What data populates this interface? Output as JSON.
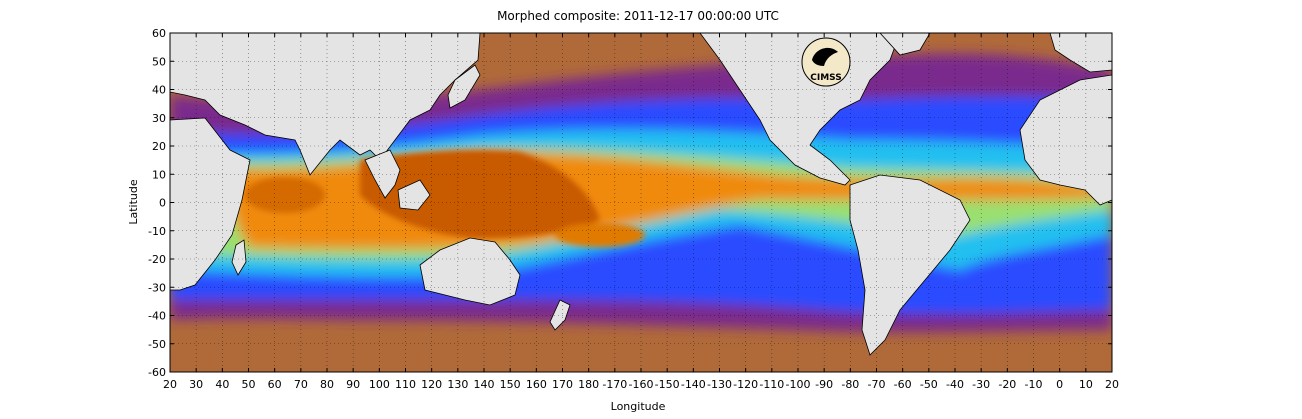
{
  "figure": {
    "title": "Morphed composite: 2011-12-17 00:00:00 UTC",
    "xlabel": "Longitude",
    "ylabel": "Latitude",
    "logo_text": "CIMSS"
  },
  "map_data": {
    "type": "heatmap",
    "x_ticks": [
      "20",
      "30",
      "40",
      "50",
      "60",
      "70",
      "80",
      "90",
      "100",
      "110",
      "120",
      "130",
      "140",
      "150",
      "160",
      "170",
      "180",
      "-170",
      "-160",
      "-150",
      "-140",
      "-130",
      "-120",
      "-110",
      "-100",
      "-90",
      "-80",
      "-70",
      "-60",
      "-50",
      "-40",
      "-30",
      "-20",
      "-10",
      "0",
      "10",
      "20"
    ],
    "y_ticks": [
      "60",
      "50",
      "40",
      "30",
      "20",
      "10",
      "0",
      "-10",
      "-20",
      "-30",
      "-40",
      "-50",
      "-60"
    ],
    "grid": "dotted",
    "colors": {
      "land": "#e4e4e4",
      "dry_brown": "#b8703e",
      "purple": "#7a2a8c",
      "blue": "#2a5cff",
      "cyan": "#22c8f0",
      "green": "#8ce07a",
      "yellow": "#f0e040",
      "orange": "#f08a10",
      "deep_orange": "#c85a00"
    }
  }
}
